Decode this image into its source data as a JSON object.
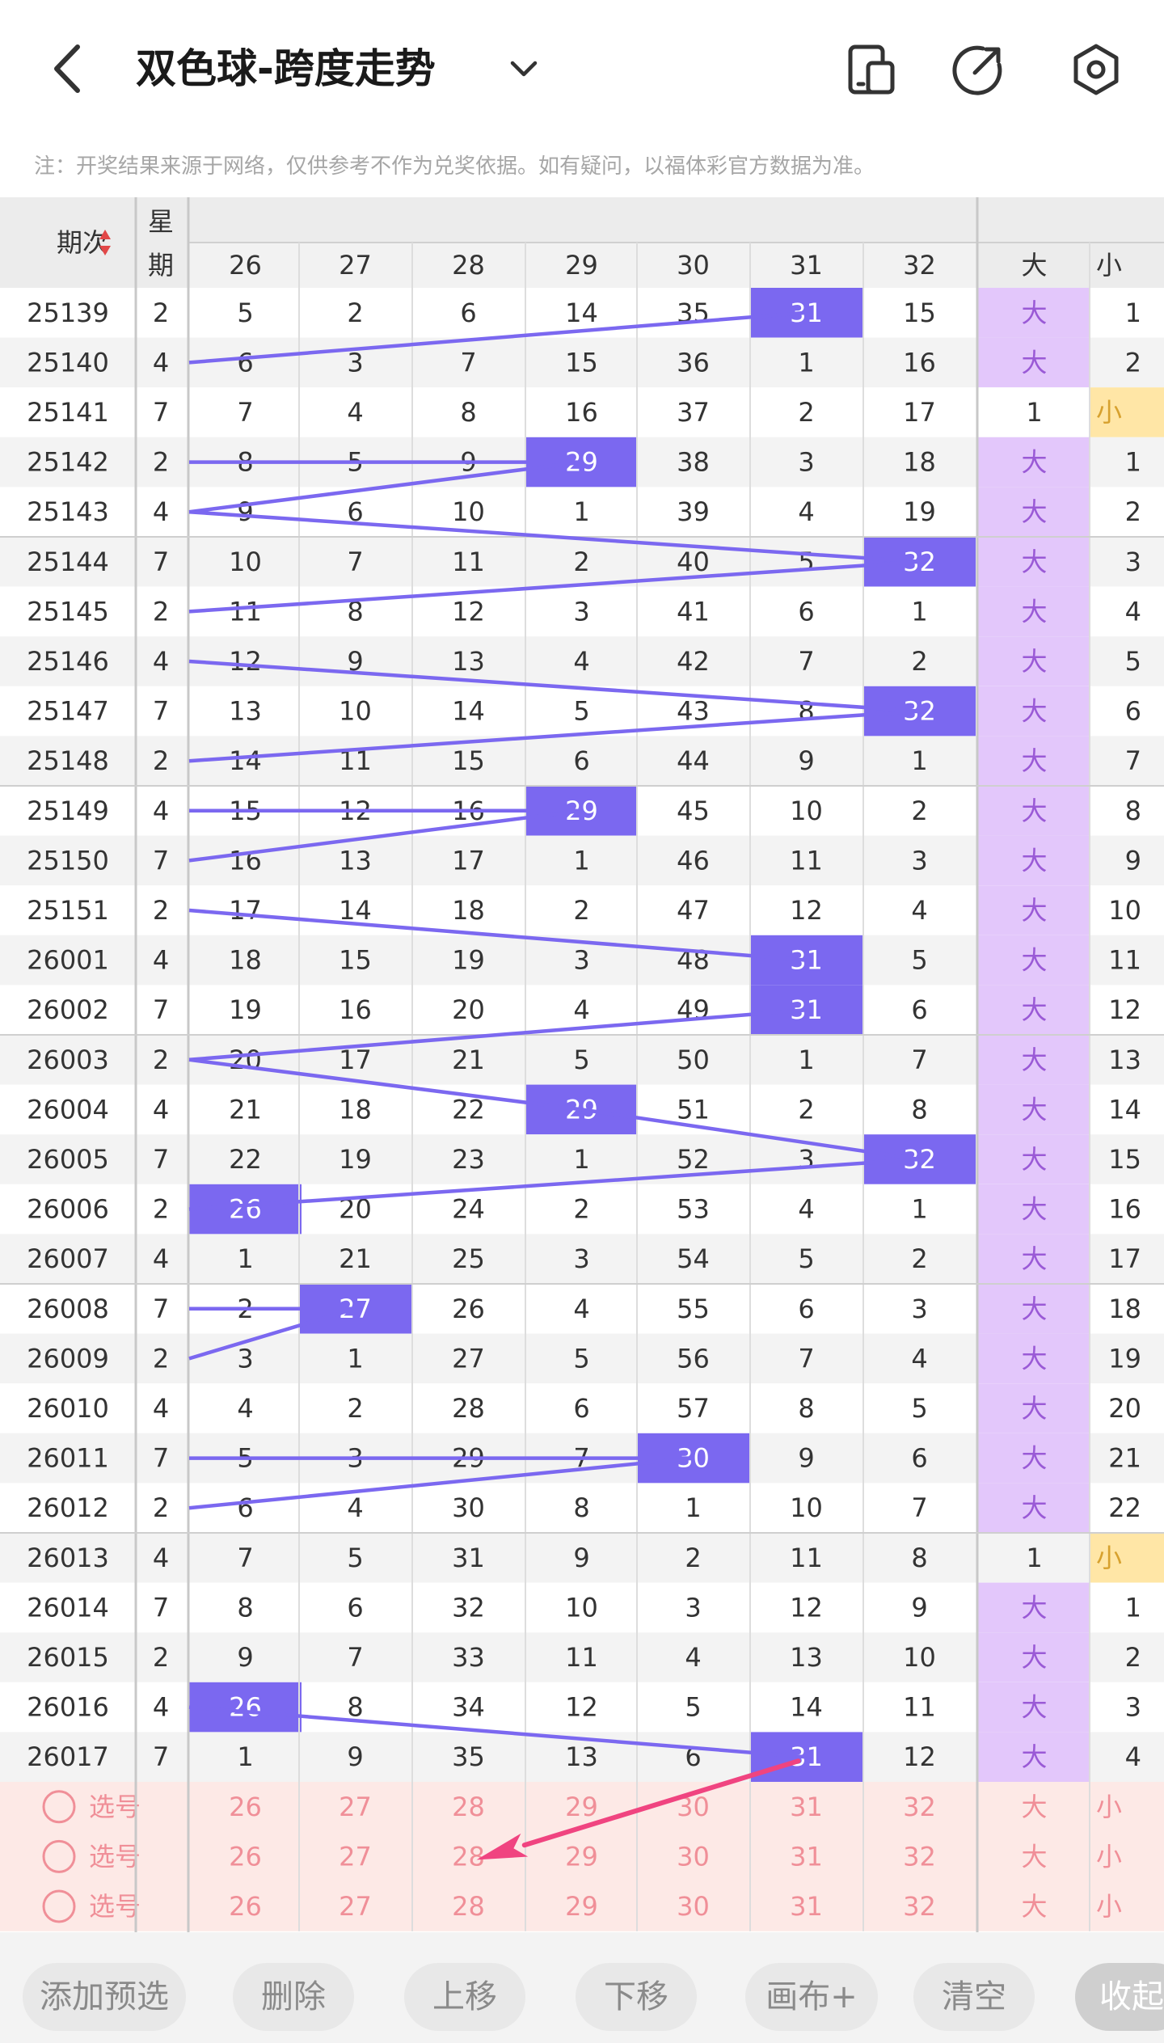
{
  "header": {
    "title": "双色球-跨度走势",
    "notice": "注：开奖结果来源于网络，仅供参考不作为兑奖依据。如有疑问，以福体彩官方数据为准。"
  },
  "table": {
    "col_issue": "期次",
    "col_week_1": "星",
    "col_week_2": "期",
    "span_columns": [
      "26",
      "27",
      "28",
      "29",
      "30",
      "31",
      "32"
    ],
    "size_columns": [
      "大",
      "小"
    ],
    "rows": [
      {
        "issue": "25139",
        "week": "2",
        "vals": [
          "5",
          "2",
          "6",
          "14",
          "35",
          "31",
          "15"
        ],
        "hit": 5,
        "big": "大",
        "small": "1",
        "size": "big"
      },
      {
        "issue": "25140",
        "week": "4",
        "vals": [
          "6",
          "3",
          "7",
          "15",
          "36",
          "1",
          "16"
        ],
        "hit": -1,
        "big": "大",
        "small": "2",
        "size": "big"
      },
      {
        "issue": "25141",
        "week": "7",
        "vals": [
          "7",
          "4",
          "8",
          "16",
          "37",
          "2",
          "17"
        ],
        "hit": -1,
        "big": "1",
        "small": "小",
        "size": "small"
      },
      {
        "issue": "25142",
        "week": "2",
        "vals": [
          "8",
          "5",
          "9",
          "29",
          "38",
          "3",
          "18"
        ],
        "hit": 3,
        "big": "大",
        "small": "1",
        "size": "big"
      },
      {
        "issue": "25143",
        "week": "4",
        "vals": [
          "9",
          "6",
          "10",
          "1",
          "39",
          "4",
          "19"
        ],
        "hit": -1,
        "big": "大",
        "small": "2",
        "size": "big"
      },
      {
        "issue": "25144",
        "week": "7",
        "vals": [
          "10",
          "7",
          "11",
          "2",
          "40",
          "5",
          "32"
        ],
        "hit": 6,
        "big": "大",
        "small": "3",
        "size": "big"
      },
      {
        "issue": "25145",
        "week": "2",
        "vals": [
          "11",
          "8",
          "12",
          "3",
          "41",
          "6",
          "1"
        ],
        "hit": -1,
        "big": "大",
        "small": "4",
        "size": "big"
      },
      {
        "issue": "25146",
        "week": "4",
        "vals": [
          "12",
          "9",
          "13",
          "4",
          "42",
          "7",
          "2"
        ],
        "hit": -1,
        "big": "大",
        "small": "5",
        "size": "big"
      },
      {
        "issue": "25147",
        "week": "7",
        "vals": [
          "13",
          "10",
          "14",
          "5",
          "43",
          "8",
          "32"
        ],
        "hit": 6,
        "big": "大",
        "small": "6",
        "size": "big"
      },
      {
        "issue": "25148",
        "week": "2",
        "vals": [
          "14",
          "11",
          "15",
          "6",
          "44",
          "9",
          "1"
        ],
        "hit": -1,
        "big": "大",
        "small": "7",
        "size": "big"
      },
      {
        "issue": "25149",
        "week": "4",
        "vals": [
          "15",
          "12",
          "16",
          "29",
          "45",
          "10",
          "2"
        ],
        "hit": 3,
        "big": "大",
        "small": "8",
        "size": "big"
      },
      {
        "issue": "25150",
        "week": "7",
        "vals": [
          "16",
          "13",
          "17",
          "1",
          "46",
          "11",
          "3"
        ],
        "hit": -1,
        "big": "大",
        "small": "9",
        "size": "big"
      },
      {
        "issue": "25151",
        "week": "2",
        "vals": [
          "17",
          "14",
          "18",
          "2",
          "47",
          "12",
          "4"
        ],
        "hit": -1,
        "big": "大",
        "small": "10",
        "size": "big"
      },
      {
        "issue": "26001",
        "week": "4",
        "vals": [
          "18",
          "15",
          "19",
          "3",
          "48",
          "31",
          "5"
        ],
        "hit": 5,
        "big": "大",
        "small": "11",
        "size": "big"
      },
      {
        "issue": "26002",
        "week": "7",
        "vals": [
          "19",
          "16",
          "20",
          "4",
          "49",
          "31",
          "6"
        ],
        "hit": 5,
        "big": "大",
        "small": "12",
        "size": "big"
      },
      {
        "issue": "26003",
        "week": "2",
        "vals": [
          "20",
          "17",
          "21",
          "5",
          "50",
          "1",
          "7"
        ],
        "hit": -1,
        "big": "大",
        "small": "13",
        "size": "big"
      },
      {
        "issue": "26004",
        "week": "4",
        "vals": [
          "21",
          "18",
          "22",
          "29",
          "51",
          "2",
          "8"
        ],
        "hit": 3,
        "big": "大",
        "small": "14",
        "size": "big"
      },
      {
        "issue": "26005",
        "week": "7",
        "vals": [
          "22",
          "19",
          "23",
          "1",
          "52",
          "3",
          "32"
        ],
        "hit": 6,
        "big": "大",
        "small": "15",
        "size": "big"
      },
      {
        "issue": "26006",
        "week": "2",
        "vals": [
          "26",
          "20",
          "24",
          "2",
          "53",
          "4",
          "1"
        ],
        "hit": 0,
        "big": "大",
        "small": "16",
        "size": "big"
      },
      {
        "issue": "26007",
        "week": "4",
        "vals": [
          "1",
          "21",
          "25",
          "3",
          "54",
          "5",
          "2"
        ],
        "hit": -1,
        "big": "大",
        "small": "17",
        "size": "big"
      },
      {
        "issue": "26008",
        "week": "7",
        "vals": [
          "2",
          "27",
          "26",
          "4",
          "55",
          "6",
          "3"
        ],
        "hit": 1,
        "big": "大",
        "small": "18",
        "size": "big"
      },
      {
        "issue": "26009",
        "week": "2",
        "vals": [
          "3",
          "1",
          "27",
          "5",
          "56",
          "7",
          "4"
        ],
        "hit": -1,
        "big": "大",
        "small": "19",
        "size": "big"
      },
      {
        "issue": "26010",
        "week": "4",
        "vals": [
          "4",
          "2",
          "28",
          "6",
          "57",
          "8",
          "5"
        ],
        "hit": -1,
        "big": "大",
        "small": "20",
        "size": "big"
      },
      {
        "issue": "26011",
        "week": "7",
        "vals": [
          "5",
          "3",
          "29",
          "7",
          "30",
          "9",
          "6"
        ],
        "hit": 4,
        "big": "大",
        "small": "21",
        "size": "big"
      },
      {
        "issue": "26012",
        "week": "2",
        "vals": [
          "6",
          "4",
          "30",
          "8",
          "1",
          "10",
          "7"
        ],
        "hit": -1,
        "big": "大",
        "small": "22",
        "size": "big"
      },
      {
        "issue": "26013",
        "week": "4",
        "vals": [
          "7",
          "5",
          "31",
          "9",
          "2",
          "11",
          "8"
        ],
        "hit": -1,
        "big": "1",
        "small": "小",
        "size": "small"
      },
      {
        "issue": "26014",
        "week": "7",
        "vals": [
          "8",
          "6",
          "32",
          "10",
          "3",
          "12",
          "9"
        ],
        "hit": -1,
        "big": "大",
        "small": "1",
        "size": "big"
      },
      {
        "issue": "26015",
        "week": "2",
        "vals": [
          "9",
          "7",
          "33",
          "11",
          "4",
          "13",
          "10"
        ],
        "hit": -1,
        "big": "大",
        "small": "2",
        "size": "big"
      },
      {
        "issue": "26016",
        "week": "4",
        "vals": [
          "26",
          "8",
          "34",
          "12",
          "5",
          "14",
          "11"
        ],
        "hit": 0,
        "big": "大",
        "small": "3",
        "size": "big"
      },
      {
        "issue": "26017",
        "week": "7",
        "vals": [
          "1",
          "9",
          "35",
          "13",
          "6",
          "31",
          "12"
        ],
        "hit": 5,
        "big": "大",
        "small": "4",
        "size": "big"
      }
    ],
    "trend_connections": [
      [
        [
          0,
          5
        ],
        [
          1,
          0
        ]
      ],
      [
        [
          3,
          0
        ],
        [
          3,
          3
        ]
      ],
      [
        [
          3,
          3
        ],
        [
          4,
          0
        ]
      ],
      [
        [
          4,
          0
        ],
        [
          5,
          6
        ]
      ],
      [
        [
          5,
          6
        ],
        [
          6,
          0
        ]
      ],
      [
        [
          7,
          0
        ],
        [
          8,
          6
        ]
      ],
      [
        [
          8,
          6
        ],
        [
          9,
          0
        ]
      ],
      [
        [
          10,
          0
        ],
        [
          10,
          3
        ]
      ],
      [
        [
          10,
          3
        ],
        [
          11,
          0
        ]
      ],
      [
        [
          12,
          0
        ],
        [
          13,
          5
        ]
      ],
      [
        [
          14,
          5
        ],
        [
          15,
          0
        ]
      ],
      [
        [
          15,
          0
        ],
        [
          16,
          3
        ]
      ],
      [
        [
          16,
          3
        ],
        [
          17,
          6
        ]
      ],
      [
        [
          17,
          6
        ],
        [
          18,
          0
        ]
      ],
      [
        [
          20,
          0
        ],
        [
          20,
          1
        ]
      ],
      [
        [
          20,
          1
        ],
        [
          21,
          0
        ]
      ],
      [
        [
          23,
          0
        ],
        [
          23,
          4
        ]
      ],
      [
        [
          23,
          4
        ],
        [
          24,
          0
        ]
      ],
      [
        [
          28,
          0
        ],
        [
          29,
          5
        ]
      ]
    ],
    "pick_rows": [
      {
        "label": "选号"
      },
      {
        "label": "选号"
      },
      {
        "label": "选号"
      }
    ],
    "pick_nums": [
      "26",
      "27",
      "28",
      "29",
      "30",
      "31",
      "32"
    ],
    "pick_big": "大",
    "pick_small": "小",
    "annotation_arrow": {
      "from_row": 29,
      "from_col": 5,
      "to_row": 31,
      "to_col": 2
    }
  },
  "toolbar": {
    "buttons": [
      {
        "label": "添加预选",
        "name": "add-preselect-button"
      },
      {
        "label": "删除",
        "name": "delete-button"
      },
      {
        "label": "上移",
        "name": "move-up-button"
      },
      {
        "label": "下移",
        "name": "move-down-button"
      },
      {
        "label": "画布+",
        "name": "canvas-plus-button"
      },
      {
        "label": "清空",
        "name": "clear-button"
      },
      {
        "label": "收起",
        "name": "collapse-button"
      }
    ]
  },
  "colors": {
    "hit": "#7b68f0",
    "line": "#7b68f0",
    "big_bg": "#e3c7fb",
    "big_text": "#9a5ad6",
    "small_bg": "#ffe6a6",
    "small_text": "#d7a12e",
    "pick_bg": "#fde9e6",
    "pick_text": "#f08f98",
    "arrow": "#f04480",
    "icon": "#333333"
  },
  "icons": {
    "back": "chevron-left-icon",
    "dropdown": "chevron-down-icon",
    "layout": "phone-layout-icon",
    "share": "share-icon",
    "settings": "settings-icon"
  }
}
